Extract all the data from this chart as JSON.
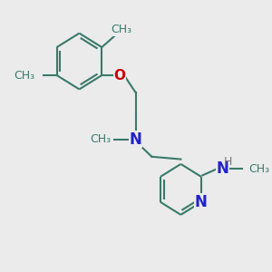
{
  "bg_color": "#ebebeb",
  "bond_color": "#3a7a6a",
  "O_color": "#cc0000",
  "N_color": "#2222cc",
  "H_color": "#777777",
  "lw": 1.5,
  "figsize": [
    3.0,
    3.0
  ],
  "dpi": 100,
  "xlim": [
    0,
    10
  ],
  "ylim": [
    0,
    10
  ],
  "font_size": 10
}
